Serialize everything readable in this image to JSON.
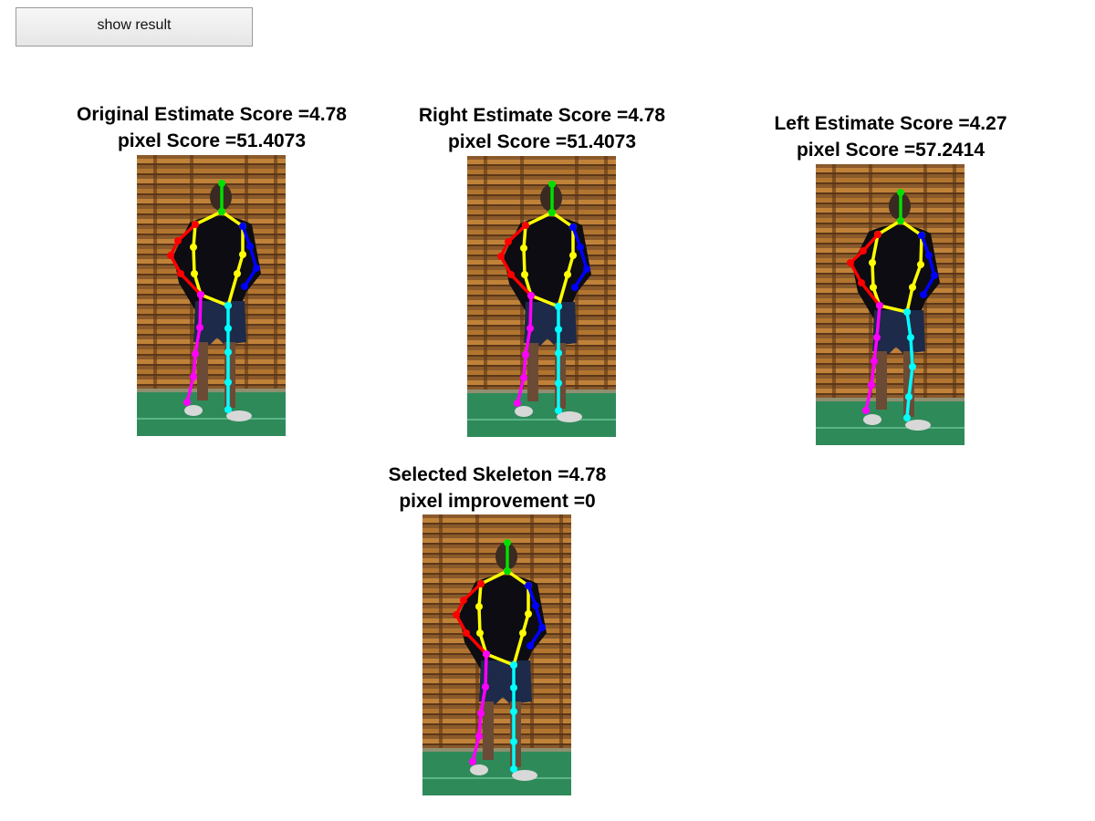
{
  "controls": {
    "show_result_label": "show result"
  },
  "panels": [
    {
      "id": "original",
      "title_line1": "Original Estimate Score =4.78",
      "title_line2": "pixel Score =51.4073",
      "variant": "right"
    },
    {
      "id": "right",
      "title_line1": "Right Estimate Score =4.78",
      "title_line2": "pixel Score =51.4073",
      "variant": "right"
    },
    {
      "id": "left",
      "title_line1": "Left Estimate Score =4.27",
      "title_line2": "pixel Score =57.2414",
      "variant": "left"
    },
    {
      "id": "selected",
      "title_line1": "Selected Skeleton =4.78",
      "title_line2": "pixel improvement =0",
      "variant": "right"
    }
  ],
  "skeleton_colors": {
    "head": "#00e000",
    "torso": "#ffff00",
    "right_arm": "#ff0000",
    "left_arm": "#0000ff",
    "right_leg": "#ff00ff",
    "left_leg": "#00ffff"
  }
}
